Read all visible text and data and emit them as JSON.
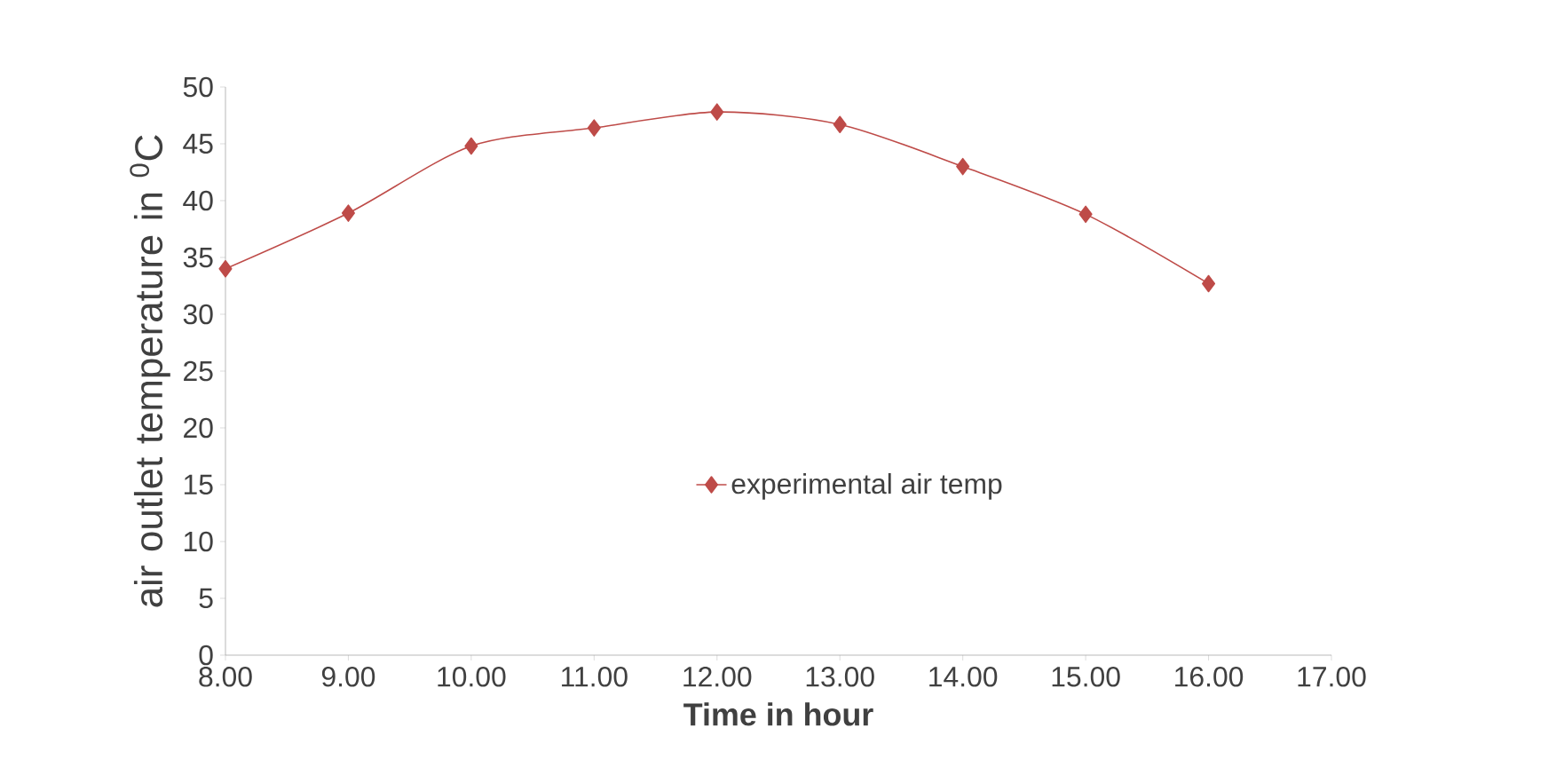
{
  "chart_data": {
    "type": "line",
    "xlabel": "Time in hour",
    "ylabel": "air outlet temperature in $^{0}$C",
    "x": [
      8,
      9,
      10,
      11,
      12,
      13,
      14,
      15,
      16
    ],
    "series": [
      {
        "name": "experimental air temp",
        "color": "#be4b48",
        "values": [
          34.0,
          38.9,
          44.8,
          46.4,
          47.8,
          46.7,
          43.0,
          38.8,
          32.7
        ]
      }
    ],
    "xlim": [
      8,
      17
    ],
    "xticks": [
      {
        "value": 8,
        "label": "8.00"
      },
      {
        "value": 9,
        "label": "9.00"
      },
      {
        "value": 10,
        "label": "10.00"
      },
      {
        "value": 11,
        "label": "11.00"
      },
      {
        "value": 12,
        "label": "12.00"
      },
      {
        "value": 13,
        "label": "13.00"
      },
      {
        "value": 14,
        "label": "14.00"
      },
      {
        "value": 15,
        "label": "15.00"
      },
      {
        "value": 16,
        "label": "16.00"
      },
      {
        "value": 17,
        "label": "17.00"
      }
    ],
    "ylim": [
      0,
      50
    ],
    "yticks": [
      0,
      5,
      10,
      15,
      20,
      25,
      30,
      35,
      40,
      45,
      50
    ],
    "grid": false,
    "legend": "center",
    "marker": "diamond",
    "line_style": "solid"
  }
}
